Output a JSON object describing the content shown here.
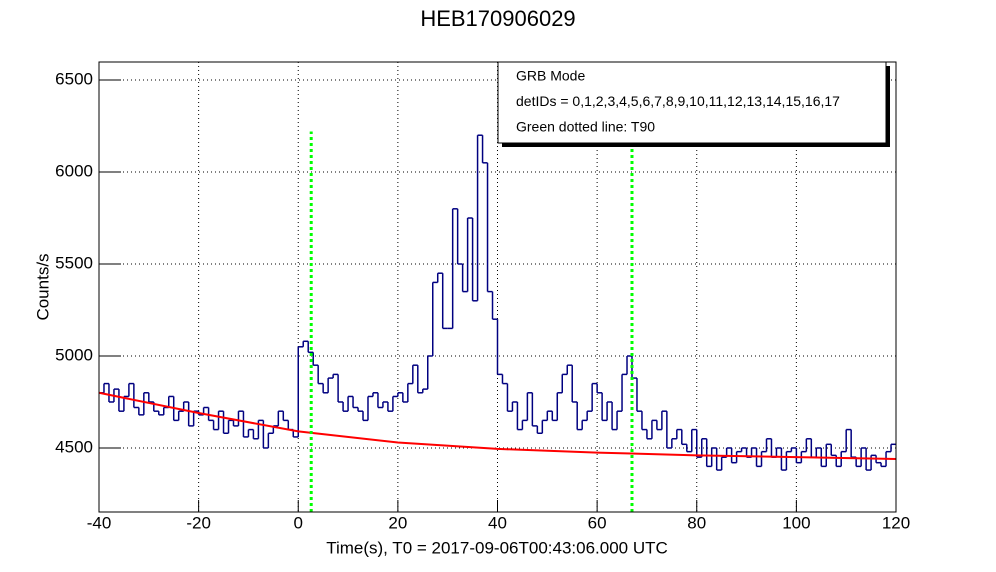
{
  "chart_data": {
    "type": "histogram",
    "title": "HEB170906029",
    "x_label": "Time(s), T0 = 2017-09-06T00:43:06.000 UTC",
    "y_label": "Counts/s",
    "bins": [
      -40,
      -39,
      -38,
      -37,
      -36,
      -35,
      -34,
      -33,
      -32,
      -31,
      -30,
      -29,
      -28,
      -27,
      -26,
      -25,
      -24,
      -23,
      -22,
      -21,
      -20,
      -19,
      -18,
      -17,
      -16,
      -15,
      -14,
      -13,
      -12,
      -11,
      -10,
      -9,
      -8,
      -7,
      -6,
      -5,
      -4,
      -3,
      -2,
      -1,
      0,
      1,
      2,
      3,
      4,
      5,
      6,
      7,
      8,
      9,
      10,
      11,
      12,
      13,
      14,
      15,
      16,
      17,
      18,
      19,
      20,
      21,
      22,
      23,
      24,
      25,
      26,
      27,
      28,
      29,
      30,
      31,
      32,
      33,
      34,
      35,
      36,
      37,
      38,
      39,
      40,
      41,
      42,
      43,
      44,
      45,
      46,
      47,
      48,
      49,
      50,
      51,
      52,
      53,
      54,
      55,
      56,
      57,
      58,
      59,
      60,
      61,
      62,
      63,
      64,
      65,
      66,
      67,
      68,
      69,
      70,
      71,
      72,
      73,
      74,
      75,
      76,
      77,
      78,
      79,
      80,
      81,
      82,
      83,
      84,
      85,
      86,
      87,
      88,
      89,
      90,
      91,
      92,
      93,
      94,
      95,
      96,
      97,
      98,
      99,
      100,
      101,
      102,
      103,
      104,
      105,
      106,
      107,
      108,
      109,
      110,
      111,
      112,
      113,
      114,
      115,
      116,
      117,
      118,
      119,
      120
    ],
    "values": [
      4800,
      4850,
      4750,
      4820,
      4700,
      4780,
      4850,
      4720,
      4680,
      4800,
      4750,
      4700,
      4680,
      4720,
      4780,
      4650,
      4700,
      4750,
      4620,
      4700,
      4680,
      4720,
      4650,
      4600,
      4700,
      4580,
      4650,
      4620,
      4700,
      4560,
      4600,
      4550,
      4650,
      4500,
      4580,
      4620,
      4700,
      4650,
      4600,
      4560,
      5050,
      5080,
      5020,
      4950,
      4850,
      4800,
      4880,
      4900,
      4750,
      4700,
      4780,
      4720,
      4700,
      4650,
      4780,
      4800,
      4720,
      4750,
      4700,
      4780,
      4800,
      4750,
      4850,
      4950,
      4800,
      4820,
      5000,
      5400,
      5450,
      5150,
      5150,
      5800,
      5500,
      5350,
      5750,
      5300,
      6200,
      6050,
      5350,
      5200,
      4900,
      4850,
      4700,
      4750,
      4600,
      4650,
      4800,
      4620,
      4580,
      4650,
      4700,
      4650,
      4800,
      4900,
      4950,
      4750,
      4600,
      4650,
      4700,
      4850,
      4800,
      4650,
      4750,
      4600,
      4700,
      4900,
      5000,
      4880,
      4700,
      4600,
      4550,
      4650,
      4600,
      4700,
      4500,
      4550,
      4600,
      4520,
      4480,
      4600,
      4450,
      4550,
      4400,
      4500,
      4380,
      4450,
      4500,
      4420,
      4480,
      4500,
      4450,
      4500,
      4400,
      4480,
      4550,
      4450,
      4500,
      4380,
      4480,
      4500,
      4420,
      4480,
      4550,
      4450,
      4500,
      4400,
      4520,
      4460,
      4400,
      4480,
      4600,
      4450,
      4400,
      4500,
      4380,
      4460,
      4420,
      4400,
      4480,
      4520
    ],
    "color": "#000080",
    "xlim": [
      -40,
      120
    ],
    "ylim": [
      4152,
      6598
    ],
    "xticks": [
      -40,
      -20,
      0,
      20,
      40,
      60,
      80,
      100,
      120
    ],
    "yticks": [
      4500,
      5000,
      5500,
      6000,
      6500
    ],
    "grid": true,
    "fit": {
      "x": [
        -40,
        -20,
        0,
        20,
        40,
        60,
        80,
        100,
        120
      ],
      "values": [
        4800,
        4690,
        4590,
        4530,
        4495,
        4475,
        4460,
        4450,
        4440
      ],
      "color": "#ff0000"
    },
    "t90": {
      "x": [
        2.6,
        67.0
      ],
      "y": [
        4152,
        6220
      ],
      "color": "#00ff00"
    },
    "legend": {
      "position": "top right",
      "entries": [
        "GRB Mode",
        "detIDs = 0,1,2,3,4,5,6,7,8,9,10,11,12,13,14,15,16,17",
        "Green dotted line: T90"
      ]
    }
  }
}
